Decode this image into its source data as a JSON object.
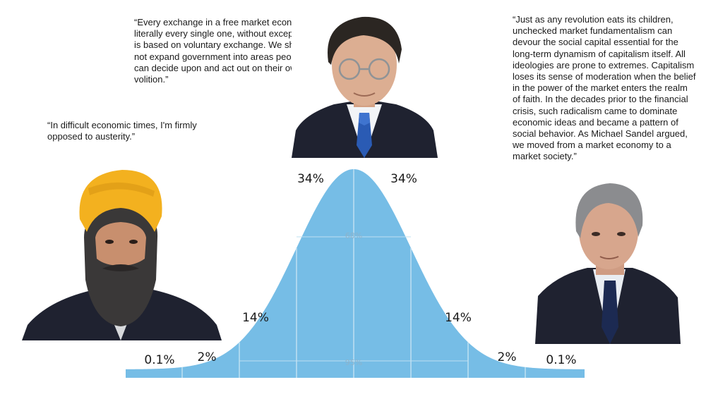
{
  "quotes": {
    "top": "“Every exchange in a free market economy, literally every single one, without exception, is based on voluntary exchange. We should not expand government into areas people can decide upon and act out on their own volition.”",
    "left": "“In difficult economic times, I'm firmly opposed to austerity.”",
    "right": "“Just as any revolution eats its children, unchecked market fundamentalism can devour the social capital essential for the long-term dynamism of capitalism itself. All ideologies are prone to extremes. Capitalism loses its sense of moderation when the belief in the power of the market enters the realm of faith. In the decades prior to the financial crisis, such radicalism came to dominate economic ideas and became a pattern of social behavior. As Michael Sandel argued, we moved from a market economy to a market society.”"
  },
  "colors": {
    "curve_fill": "#76bde6",
    "divider": "#bfe0f2",
    "turban": "#f3b11f",
    "suit": "#1f2230",
    "tie_blue": "#2a5bb4",
    "skin": "#d9a98c"
  },
  "chart_data": {
    "type": "area",
    "x": [
      -4,
      -3,
      -2,
      -1,
      0,
      1,
      2,
      3,
      4
    ],
    "segments": [
      {
        "from": -4,
        "to": -3,
        "label": "0.1%"
      },
      {
        "from": -3,
        "to": -2,
        "label": "2%"
      },
      {
        "from": -2,
        "to": -1,
        "label": "14%"
      },
      {
        "from": -1,
        "to": 0,
        "label": "34%"
      },
      {
        "from": 0,
        "to": 1,
        "label": "34%"
      },
      {
        "from": 1,
        "to": 2,
        "label": "14%"
      },
      {
        "from": 2,
        "to": 3,
        "label": "2%"
      },
      {
        "from": 3,
        "to": 4,
        "label": "0.1%"
      }
    ],
    "inner_labels": [
      "68%",
      "95%"
    ],
    "xlim": [
      -4,
      4
    ]
  }
}
